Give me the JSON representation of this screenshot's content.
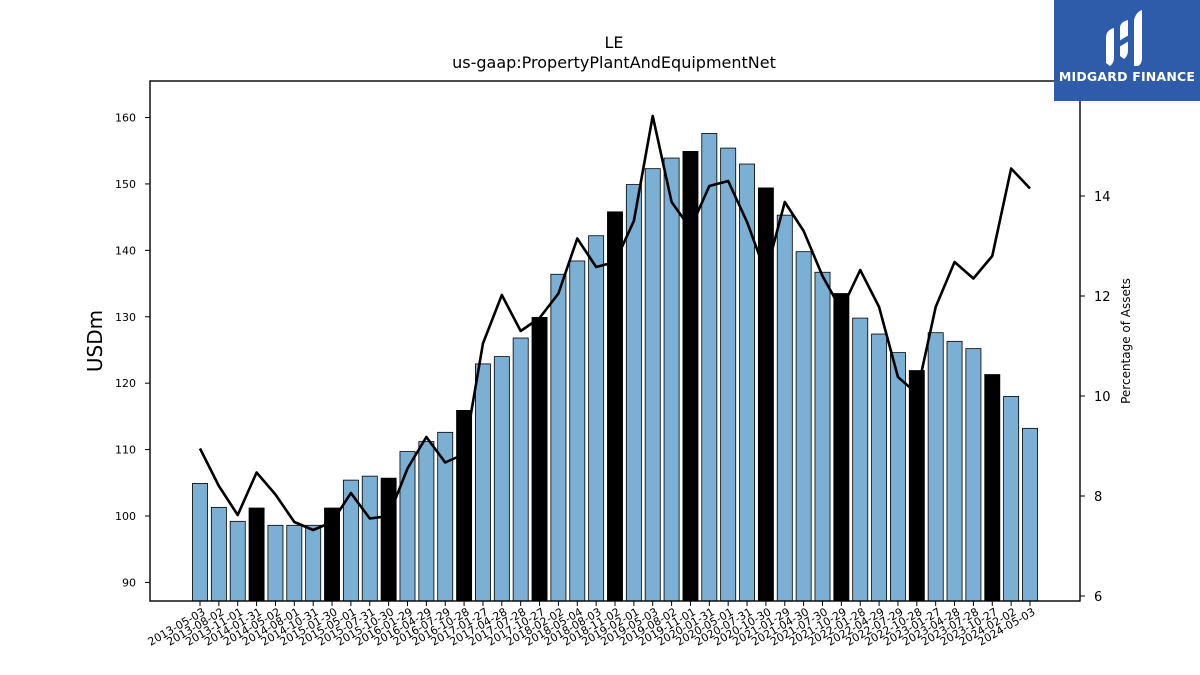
{
  "logo": {
    "text": "MIDGARD FINANCE",
    "color": "#2f5bab"
  },
  "chart_data": {
    "type": "bar",
    "title": "LE",
    "subtitle": "us-gaap:PropertyPlantAndEquipmentNet",
    "ylabel": "USDm",
    "y2label": "Percentage of Assets",
    "ylim": [
      87.2,
      165.5
    ],
    "y2lim": [
      5.9,
      16.3
    ],
    "yticks": [
      90,
      100,
      110,
      120,
      130,
      140,
      150,
      160
    ],
    "y2ticks": [
      6,
      8,
      10,
      12,
      14
    ],
    "categories": [
      "2013-05-03",
      "2013-08-02",
      "2013-11-01",
      "2014-01-31",
      "2014-05-02",
      "2014-08-01",
      "2014-10-31",
      "2015-01-30",
      "2015-05-01",
      "2015-07-31",
      "2015-10-30",
      "2016-01-29",
      "2016-04-29",
      "2016-07-29",
      "2016-10-28",
      "2017-01-27",
      "2017-04-28",
      "2017-07-28",
      "2017-10-27",
      "2018-02-02",
      "2018-05-04",
      "2018-08-03",
      "2018-11-02",
      "2019-02-01",
      "2019-05-03",
      "2019-08-02",
      "2019-11-01",
      "2020-01-31",
      "2020-05-01",
      "2020-07-31",
      "2020-10-30",
      "2021-01-29",
      "2021-04-30",
      "2021-07-30",
      "2021-10-29",
      "2022-01-28",
      "2022-04-29",
      "2022-07-29",
      "2022-10-28",
      "2023-01-27",
      "2023-04-28",
      "2023-07-28",
      "2023-10-27",
      "2024-02-02",
      "2024-05-03"
    ],
    "series": [
      {
        "kind": "bar",
        "axis": "left",
        "values": [
          104.9,
          101.3,
          99.2,
          101.2,
          98.6,
          98.6,
          98.6,
          101.2,
          105.4,
          106.0,
          105.7,
          109.7,
          111.2,
          112.6,
          115.9,
          122.9,
          124.0,
          126.8,
          129.9,
          136.4,
          138.4,
          142.2,
          145.8,
          149.9,
          152.3,
          153.9,
          154.9,
          157.6,
          155.4,
          153.0,
          149.4,
          145.3,
          139.8,
          136.7,
          133.5,
          129.8,
          127.4,
          124.6,
          121.9,
          127.6,
          126.3,
          125.2,
          121.3,
          118.0,
          113.2
        ],
        "highlight": [
          3,
          7,
          10,
          14,
          18,
          22,
          26,
          30,
          34,
          38,
          42
        ],
        "color": "#7bafd4",
        "highlight_color": "#000000"
      },
      {
        "kind": "line",
        "axis": "right",
        "values": [
          8.95,
          8.2,
          7.62,
          8.47,
          8.03,
          7.48,
          7.32,
          7.48,
          8.06,
          7.55,
          7.6,
          8.55,
          9.18,
          8.67,
          8.84,
          11.05,
          12.02,
          11.3,
          11.56,
          12.05,
          13.15,
          12.58,
          12.68,
          13.5,
          15.6,
          13.88,
          13.35,
          14.2,
          14.3,
          13.48,
          12.45,
          13.88,
          13.3,
          12.4,
          11.72,
          12.52,
          11.78,
          10.38,
          10.05,
          11.78,
          12.68,
          12.35,
          12.8,
          14.55,
          14.15
        ],
        "color": "#000000"
      }
    ],
    "grid": false,
    "legend": "none"
  }
}
